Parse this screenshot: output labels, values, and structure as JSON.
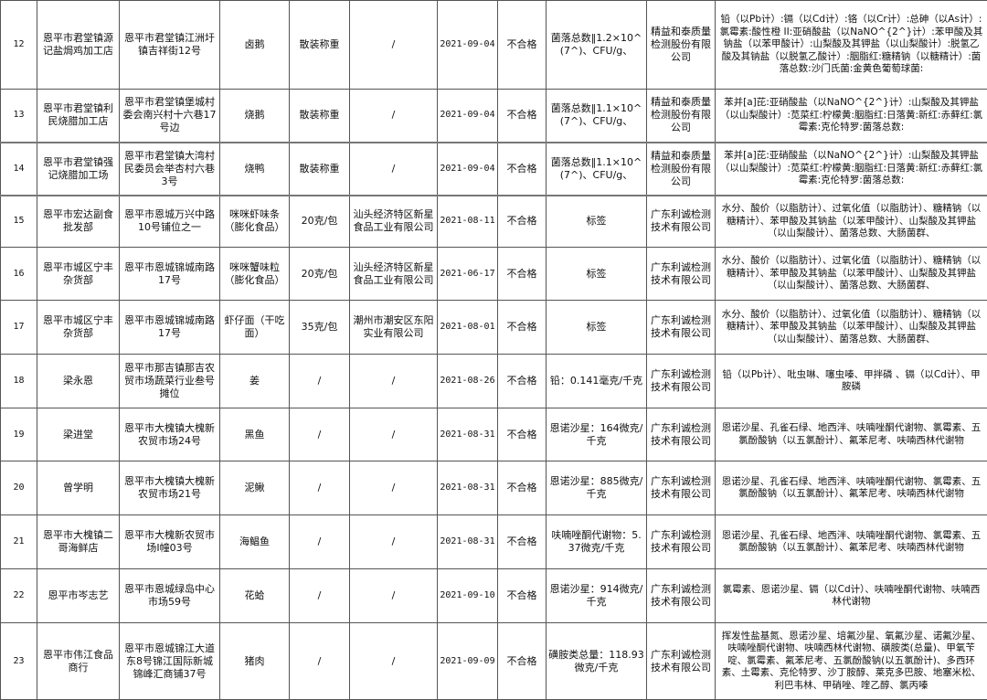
{
  "rows": [
    {
      "no": "12",
      "name": "恩平市君堂镇源记盐焗鸡加工店",
      "address": "恩平市君堂镇江洲圩镇吉祥街12号",
      "product": "卤鹅",
      "spec": "散装称重",
      "producer": "/",
      "date": "2021-09-04",
      "result": "不合格",
      "item": "菌落总数‖1.2×10^(7^)、CFU/g、",
      "lab": "精益和泰质量检测股份有限公司",
      "tests": "铅（以Pb计）:镉（以Cd计）:铬（以Cr计）:总砷（以As计）:氯霉素:酸性橙 II:亚硝酸盐（以NaNO^{2^}计）:苯甲酸及其钠盐（以苯甲酸计）:山梨酸及其钾盐（以山梨酸计）:脱氢乙酸及其钠盐（以脱氢乙酸计）:胭脂红:糖精钠（以糖精计）:菌落总数:沙门氏菌:金黄色葡萄球菌:"
    },
    {
      "no": "13",
      "name": "恩平市君堂镇利民烧腊加工店",
      "address": "恩平市君堂镇堡城村委会南兴村十六巷17号边",
      "product": "烧鹅",
      "spec": "散装称重",
      "producer": "/",
      "date": "2021-09-04",
      "result": "不合格",
      "item": "菌落总数‖1.1×10^(7^)、CFU/g、",
      "lab": "精益和泰质量检测股份有限公司",
      "tests": "苯并[a]芘:亚硝酸盐（以NaNO^{2^}计）:山梨酸及其钾盐（以山梨酸计）:苋菜红:柠檬黄:胭脂红:日落黄:新红:赤藓红:氯霉素:克伦特罗:菌落总数:"
    },
    {
      "no": "14",
      "name": "恩平市君堂镇强记烧腊加工场",
      "address": "恩平市君堂镇大湾村民委员会举杏村六巷3号",
      "product": "烧鸭",
      "spec": "散装称重",
      "producer": "/",
      "date": "2021-09-04",
      "result": "不合格",
      "item": "菌落总数‖1.1×10^(7^)、CFU/g、",
      "lab": "精益和泰质量检测股份有限公司",
      "tests": "苯并[a]芘:亚硝酸盐（以NaNO^{2^}计）:山梨酸及其钾盐（以山梨酸计）:苋菜红:柠檬黄:胭脂红:日落黄:新红:赤藓红:氯霉素:克伦特罗:菌落总数:"
    },
    {
      "no": "15",
      "name": "恩平市宏达副食批发部",
      "address": "恩平市恩城万兴中路10号铺位之一",
      "product": "咪咪虾味条（膨化食品）",
      "spec": "20克/包",
      "producer": "汕头经济特区新星食品工业有限公司",
      "date": "2021-08-11",
      "result": "不合格",
      "item": "标签",
      "lab": "广东利诚检测技术有限公司",
      "tests": "水分、酸价（以脂肪计）、过氧化值（以脂肪计）、糖精钠（以糖精计）、苯甲酸及其钠盐（以苯甲酸计）、山梨酸及其钾盐（以山梨酸计）、菌落总数、大肠菌群、"
    },
    {
      "no": "16",
      "name": "恩平市城区宁丰杂货部",
      "address": "恩平市恩城锦城南路17号",
      "product": "咪咪蟹味粒（膨化食品）",
      "spec": "20克/包",
      "producer": "汕头经济特区新星食品工业有限公司",
      "date": "2021-06-17",
      "result": "不合格",
      "item": "标签",
      "lab": "广东利诚检测技术有限公司",
      "tests": "水分、酸价（以脂肪计）、过氧化值（以脂肪计）、糖精钠（以糖精计）、苯甲酸及其钠盐（以苯甲酸计）、山梨酸及其钾盐（以山梨酸计）、菌落总数、大肠菌群、"
    },
    {
      "no": "17",
      "name": "恩平市城区宁丰杂货部",
      "address": "恩平市恩城锦城南路17号",
      "product": "虾仔面（干吃面）",
      "spec": "35克/包",
      "producer": "潮州市潮安区东阳实业有限公司",
      "date": "2021-08-01",
      "result": "不合格",
      "item": "标签",
      "lab": "广东利诚检测技术有限公司",
      "tests": "水分、酸价（以脂肪计）、过氧化值（以脂肪计）、糖精钠（以糖精计）、苯甲酸及其钠盐（以苯甲酸计）、山梨酸及其钾盐（以山梨酸计）、菌落总数、大肠菌群、"
    },
    {
      "no": "18",
      "name": "梁永恩",
      "address": "恩平市那吉镇那吉农贸市场蔬菜行业叁号摊位",
      "product": "姜",
      "spec": "/",
      "producer": "/",
      "date": "2021-08-26",
      "result": "不合格",
      "item": "铅：0.141毫克/千克",
      "lab": "广东利诚检测技术有限公司",
      "tests": "铅（以Pb计）、吡虫啉、噻虫嗪、甲拌磷 、镉（以Cd计）、甲胺磷"
    },
    {
      "no": "19",
      "name": "梁进堂",
      "address": "恩平市大槐镇大槐新农贸市场24号",
      "product": "黑鱼",
      "spec": "/",
      "producer": "/",
      "date": "2021-08-31",
      "result": "不合格",
      "item": "恩诺沙星：164微克/千克",
      "lab": "广东利诚检测技术有限公司",
      "tests": "恩诺沙星、孔雀石绿、地西泮、呋喃唑酮代谢物、氯霉素、五氯酚酸钠（以五氯酚计）、氟苯尼考、呋喃西林代谢物"
    },
    {
      "no": "20",
      "name": "曾学明",
      "address": "恩平市大槐镇大槐新农贸市场21号",
      "product": "泥鳅",
      "spec": "/",
      "producer": "/",
      "date": "2021-08-31",
      "result": "不合格",
      "item": "恩诺沙星：885微克/千克",
      "lab": "广东利诚检测技术有限公司",
      "tests": "恩诺沙星、孔雀石绿、地西泮、呋喃唑酮代谢物、氯霉素、五氯酚酸钠（以五氯酚计）、氟苯尼考、呋喃西林代谢物"
    },
    {
      "no": "21",
      "name": "恩平市大槐镇二哥海鲜店",
      "address": "恩平市大槐新农贸市场I幢03号",
      "product": "海鲳鱼",
      "spec": "/",
      "producer": "/",
      "date": "2021-08-31",
      "result": "不合格",
      "item": "呋喃唑酮代谢物：5.37微克/千克",
      "lab": "广东利诚检测技术有限公司",
      "tests": "恩诺沙星、孔雀石绿、地西泮、呋喃唑酮代谢物、氯霉素、五氯酚酸钠（以五氯酚计）、氟苯尼考、呋喃西林代谢物"
    },
    {
      "no": "22",
      "name": "恩平市岑志艺",
      "address": "恩平市恩城绿岛中心市场59号",
      "product": "花蛤",
      "spec": "/",
      "producer": "/",
      "date": "2021-09-10",
      "result": "不合格",
      "item": "恩诺沙星：914微克/千克",
      "lab": "广东利诚检测技术有限公司",
      "tests": "氯霉素、恩诺沙星、镉（以Cd计）、呋喃唑酮代谢物、呋喃西林代谢物"
    },
    {
      "no": "23",
      "name": "恩平市伟江食品商行",
      "address": "恩平市恩城锦江大道东8号锦江国际新城锦峰汇商铺37号",
      "product": "猪肉",
      "spec": "/",
      "producer": "/",
      "date": "2021-09-09",
      "result": "不合格",
      "item": "磺胺类总量：118.93微克/千克",
      "lab": "广东利诚检测技术有限公司",
      "tests": "挥发性盐基氮、恩诺沙星、培氟沙星、氧氟沙星、诺氟沙星、呋喃唑酮代谢物、呋喃西林代谢物、磺胺类(总量)、甲氧苄啶、氯霉素、氟苯尼考、五氯酚酸钠(以五氯酚计)、多西环素、土霉素、克伦特罗、沙丁胺醇、莱克多巴胺、地塞米松、利巴韦林、甲硝唑、喹乙醇、氯丙嗪"
    }
  ]
}
